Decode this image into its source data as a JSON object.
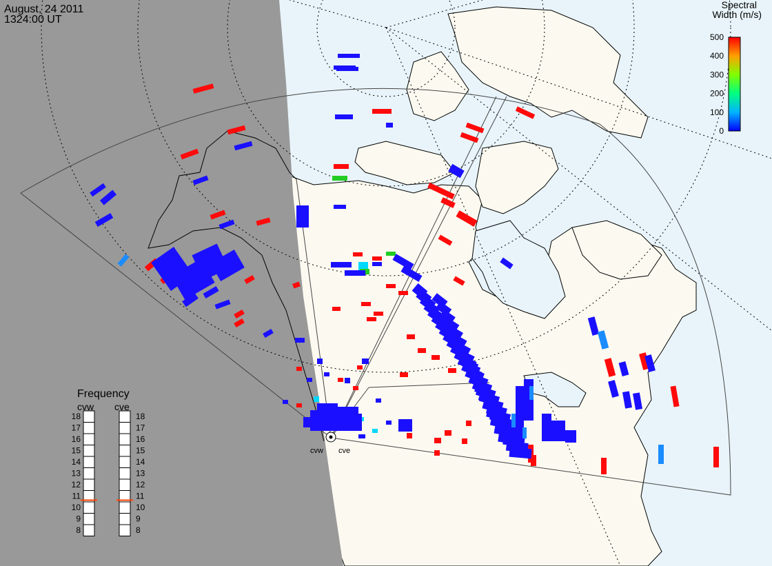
{
  "header": {
    "date": "August, 24 2011",
    "time": "1324:00 UT"
  },
  "colorbar": {
    "title_line1": "Spectral",
    "title_line2": "Width (m/s)",
    "ticks": [
      "500",
      "400",
      "300",
      "200",
      "100",
      "0"
    ],
    "colors": [
      "#ff0000",
      "#ff8000",
      "#ffff00",
      "#00ff00",
      "#00ffff",
      "#0000ff"
    ]
  },
  "frequency_panel": {
    "title": "Frequency",
    "radars": [
      {
        "name": "cvw",
        "selected": "11"
      },
      {
        "name": "cve",
        "selected": "11"
      }
    ],
    "ticks": [
      "18",
      "17",
      "16",
      "15",
      "14",
      "13",
      "12",
      "11",
      "10",
      "9",
      "8"
    ],
    "marker_color": "#ff4000"
  },
  "site_labels": {
    "west": "cvw",
    "east": "cve"
  },
  "colors": {
    "night": "#999999",
    "ocean": "#e8f4fa",
    "land": "#fcfaf0",
    "low_width": "#1a10ff",
    "high_width": "#ff0a0a",
    "mid_width": "#22cc22",
    "cyan_width": "#00d8ff",
    "light_blue_width": "#1a8cff"
  }
}
